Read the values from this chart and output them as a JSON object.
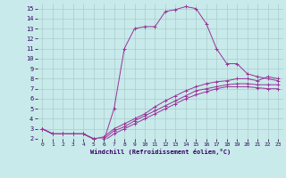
{
  "xlabel": "Windchill (Refroidissement éolien,°C)",
  "bg_color": "#c8eaea",
  "line_color": "#993399",
  "grid_color": "#aacccc",
  "xlim": [
    -0.5,
    23.5
  ],
  "ylim": [
    2,
    15.5
  ],
  "xticks": [
    0,
    1,
    2,
    3,
    4,
    5,
    6,
    7,
    8,
    9,
    10,
    11,
    12,
    13,
    14,
    15,
    16,
    17,
    18,
    19,
    20,
    21,
    22,
    23
  ],
  "yticks": [
    2,
    3,
    4,
    5,
    6,
    7,
    8,
    9,
    10,
    11,
    12,
    13,
    14,
    15
  ],
  "curves": [
    {
      "x": [
        0,
        1,
        2,
        3,
        4,
        5,
        6,
        7,
        8,
        9,
        10,
        11,
        12,
        13,
        14,
        15,
        16,
        17,
        18,
        19,
        20,
        21,
        22,
        23
      ],
      "y": [
        3.0,
        2.5,
        2.5,
        2.5,
        2.5,
        2.0,
        1.8,
        5.0,
        11.0,
        13.0,
        13.2,
        13.2,
        14.7,
        14.9,
        15.2,
        15.0,
        13.5,
        11.0,
        9.5,
        9.5,
        8.5,
        8.2,
        8.0,
        7.8
      ]
    },
    {
      "x": [
        0,
        1,
        2,
        3,
        4,
        5,
        6,
        7,
        8,
        9,
        10,
        11,
        12,
        13,
        14,
        15,
        16,
        17,
        18,
        19,
        20,
        21,
        22,
        23
      ],
      "y": [
        3.0,
        2.5,
        2.5,
        2.5,
        2.5,
        2.0,
        2.2,
        3.0,
        3.5,
        4.0,
        4.5,
        5.2,
        5.8,
        6.3,
        6.8,
        7.2,
        7.5,
        7.7,
        7.8,
        8.0,
        8.0,
        7.8,
        8.2,
        8.0
      ]
    },
    {
      "x": [
        0,
        1,
        2,
        3,
        4,
        5,
        6,
        7,
        8,
        9,
        10,
        11,
        12,
        13,
        14,
        15,
        16,
        17,
        18,
        19,
        20,
        21,
        22,
        23
      ],
      "y": [
        3.0,
        2.5,
        2.5,
        2.5,
        2.5,
        2.0,
        2.0,
        2.8,
        3.2,
        3.8,
        4.3,
        4.8,
        5.3,
        5.8,
        6.3,
        6.8,
        7.0,
        7.2,
        7.4,
        7.5,
        7.5,
        7.4,
        7.4,
        7.4
      ]
    },
    {
      "x": [
        0,
        1,
        2,
        3,
        4,
        5,
        6,
        7,
        8,
        9,
        10,
        11,
        12,
        13,
        14,
        15,
        16,
        17,
        18,
        19,
        20,
        21,
        22,
        23
      ],
      "y": [
        3.0,
        2.5,
        2.5,
        2.5,
        2.5,
        2.0,
        1.8,
        2.5,
        3.0,
        3.5,
        4.0,
        4.5,
        5.0,
        5.5,
        6.0,
        6.4,
        6.7,
        7.0,
        7.2,
        7.2,
        7.2,
        7.1,
        7.0,
        7.0
      ]
    }
  ]
}
